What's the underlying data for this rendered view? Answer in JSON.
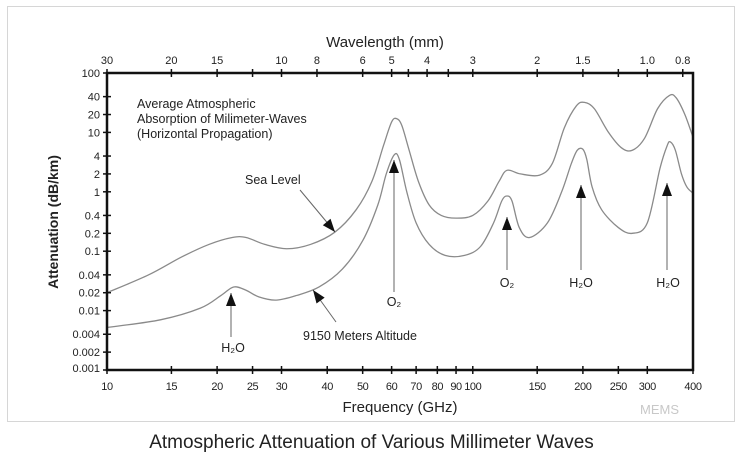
{
  "chart_data": {
    "type": "line",
    "caption": "Atmospheric Attenuation of Various Millimeter Waves",
    "title": "Average Atmospheric Absorption of Milimeter-Waves (Horizontal Propagation)",
    "title_lines": [
      "Average Atmospheric",
      "Absorption of Milimeter-Waves",
      "(Horizontal Propagation)"
    ],
    "xlabel": "Frequency (GHz)",
    "ylabel": "Attenuation (dB/km)",
    "x2label": "Wavelength (mm)",
    "xscale": "log",
    "yscale": "log",
    "xlim": [
      10,
      400
    ],
    "ylim": [
      0.001,
      100
    ],
    "xticks": [
      10,
      15,
      20,
      25,
      30,
      40,
      50,
      60,
      70,
      80,
      90,
      100,
      150,
      200,
      250,
      300,
      400
    ],
    "xtick_labels": [
      "10",
      "15",
      "20",
      "25",
      "30",
      "40",
      "50",
      "60",
      "70",
      "80",
      "90",
      "100",
      "150",
      "200",
      "250",
      "300",
      "400"
    ],
    "yticks": [
      100,
      40,
      20,
      10,
      4,
      2,
      1,
      0.4,
      0.2,
      0.1,
      0.04,
      0.02,
      0.01,
      0.004,
      0.002,
      0.001
    ],
    "ytick_labels": [
      "100",
      "40",
      "20",
      "10",
      "4",
      "2",
      "1",
      "0.4",
      "0.2",
      "0.1",
      "0.04",
      "0.02",
      "0.01",
      "0.004",
      "0.002",
      "0.001"
    ],
    "x2ticks_mm": [
      30,
      20,
      15,
      12,
      10,
      8,
      6,
      5,
      4.5,
      4,
      3.5,
      3,
      2,
      1.5,
      1.2,
      1.0,
      0.8
    ],
    "x2tick_labels": [
      "30",
      "20",
      "15",
      "",
      "10",
      "8",
      "6",
      "5",
      "",
      "4",
      "",
      "3",
      "2",
      "1.5",
      "",
      "1.0",
      "0.8"
    ],
    "grid": false,
    "series": [
      {
        "name": "Sea Level",
        "points": [
          [
            10,
            0.02
          ],
          [
            13,
            0.04
          ],
          [
            16,
            0.08
          ],
          [
            19,
            0.13
          ],
          [
            22,
            0.17
          ],
          [
            24,
            0.17
          ],
          [
            27,
            0.13
          ],
          [
            31,
            0.11
          ],
          [
            36,
            0.13
          ],
          [
            42,
            0.21
          ],
          [
            48,
            0.5
          ],
          [
            53,
            1.5
          ],
          [
            57,
            6
          ],
          [
            60,
            15
          ],
          [
            62,
            17
          ],
          [
            64,
            13
          ],
          [
            67,
            5
          ],
          [
            71,
            1.5
          ],
          [
            76,
            0.6
          ],
          [
            82,
            0.4
          ],
          [
            90,
            0.36
          ],
          [
            100,
            0.4
          ],
          [
            110,
            0.7
          ],
          [
            118,
            1.5
          ],
          [
            124,
            2.3
          ],
          [
            135,
            2
          ],
          [
            152,
            1.9
          ],
          [
            165,
            3
          ],
          [
            178,
            12
          ],
          [
            192,
            28
          ],
          [
            202,
            32
          ],
          [
            215,
            25
          ],
          [
            235,
            10
          ],
          [
            255,
            5.5
          ],
          [
            273,
            5
          ],
          [
            295,
            8
          ],
          [
            320,
            25
          ],
          [
            345,
            42
          ],
          [
            360,
            38
          ],
          [
            380,
            20
          ],
          [
            400,
            8.3
          ]
        ]
      },
      {
        "name": "9150 Meters Altitude",
        "points": [
          [
            10,
            0.0052
          ],
          [
            14,
            0.007
          ],
          [
            18,
            0.011
          ],
          [
            20.5,
            0.018
          ],
          [
            22.2,
            0.025
          ],
          [
            24,
            0.022
          ],
          [
            26,
            0.017
          ],
          [
            29,
            0.015
          ],
          [
            33,
            0.018
          ],
          [
            38,
            0.025
          ],
          [
            44,
            0.05
          ],
          [
            50,
            0.15
          ],
          [
            55,
            0.6
          ],
          [
            58,
            2
          ],
          [
            61,
            4.2
          ],
          [
            63,
            3.5
          ],
          [
            66,
            1
          ],
          [
            70,
            0.3
          ],
          [
            76,
            0.13
          ],
          [
            84,
            0.085
          ],
          [
            95,
            0.085
          ],
          [
            105,
            0.12
          ],
          [
            114,
            0.3
          ],
          [
            120,
            0.7
          ],
          [
            124,
            0.85
          ],
          [
            128,
            0.7
          ],
          [
            134,
            0.25
          ],
          [
            143,
            0.17
          ],
          [
            160,
            0.3
          ],
          [
            175,
            1
          ],
          [
            186,
            3
          ],
          [
            193,
            5
          ],
          [
            200,
            5.2
          ],
          [
            205,
            3.5
          ],
          [
            212,
            1.2
          ],
          [
            225,
            0.5
          ],
          [
            250,
            0.25
          ],
          [
            273,
            0.2
          ],
          [
            300,
            0.3
          ],
          [
            325,
            2.5
          ],
          [
            340,
            6
          ],
          [
            347,
            6.9
          ],
          [
            358,
            5
          ],
          [
            372,
            2
          ],
          [
            385,
            1.2
          ],
          [
            400,
            0.95
          ]
        ]
      }
    ],
    "annotations": [
      {
        "text": "Sea Level",
        "points_to": "Sea Level curve"
      },
      {
        "text": "9150 Meters Altitude",
        "points_to": "9150 Meters Altitude curve"
      },
      {
        "text": "H₂O",
        "freq": 22
      },
      {
        "text": "O₂",
        "freq": 60
      },
      {
        "text": "O₂",
        "freq": 119
      },
      {
        "text": "H₂O",
        "freq": 183
      },
      {
        "text": "H₂O",
        "freq": 325
      }
    ],
    "watermark": "MEMS"
  }
}
